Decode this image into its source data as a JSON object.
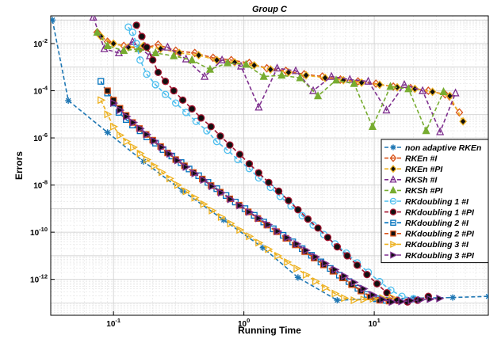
{
  "chart_data": {
    "type": "line",
    "title": "Group C",
    "xlabel": "Running Time",
    "ylabel": "Errors",
    "xscale": "log",
    "yscale": "log",
    "xlim": [
      0.033,
      75
    ],
    "ylim": [
      3e-14,
      0.15
    ],
    "grid": true,
    "legend_position": "right",
    "x_ticks": [
      {
        "value": 0.1,
        "base": "10",
        "exp": "-1"
      },
      {
        "value": 1,
        "base": "10",
        "exp": "0"
      },
      {
        "value": 10,
        "base": "10",
        "exp": "1"
      }
    ],
    "y_ticks": [
      {
        "value": 0.01,
        "base": "10",
        "exp": "-2"
      },
      {
        "value": 0.0001,
        "base": "10",
        "exp": "-4"
      },
      {
        "value": 1e-06,
        "base": "10",
        "exp": "-6"
      },
      {
        "value": 1e-08,
        "base": "10",
        "exp": "-8"
      },
      {
        "value": 1e-10,
        "base": "10",
        "exp": "-10"
      },
      {
        "value": 1e-12,
        "base": "10",
        "exp": "-12"
      }
    ],
    "series": [
      {
        "name": "non adaptive RKEn",
        "color": "#1f77b4",
        "marker": "asterisk",
        "fill": "#1f77b4",
        "x": [
          0.034,
          0.045,
          0.09,
          0.17,
          0.34,
          0.7,
          1.4,
          2.6,
          5.2,
          10,
          20,
          40,
          75
        ],
        "y": [
          0.1,
          3.8e-05,
          1.7e-06,
          1e-07,
          5.6e-09,
          3.3e-10,
          2.2e-11,
          1.2e-12,
          1.3e-13,
          1.5e-13,
          1.6e-13,
          1.7e-13,
          1.9e-13
        ]
      },
      {
        "name": "RKEn #I",
        "color": "#d95319",
        "marker": "diamond",
        "fill": "none",
        "x": [
          0.075,
          0.09,
          0.12,
          0.16,
          0.22,
          0.3,
          0.42,
          0.58,
          0.8,
          1.1,
          1.5,
          2.1,
          2.9,
          4,
          5.5,
          7.5,
          10.3,
          14,
          19,
          26,
          35,
          45
        ],
        "y": [
          0.03,
          0.012,
          0.008,
          0.006,
          0.009,
          0.005,
          0.004,
          0.0025,
          0.002,
          0.0015,
          0.0009,
          0.0007,
          0.0005,
          0.0004,
          0.0003,
          0.00025,
          0.0002,
          0.00015,
          0.00013,
          0.0001,
          7e-05,
          1.2e-05
        ]
      },
      {
        "name": "RKEn #PI",
        "color": "#edb120",
        "marker": "diamond",
        "fill": "#000000",
        "x": [
          0.08,
          0.1,
          0.13,
          0.17,
          0.23,
          0.32,
          0.45,
          0.62,
          0.85,
          1.2,
          1.6,
          2.2,
          3,
          4.2,
          5.8,
          8,
          11,
          15,
          20.5,
          28,
          38,
          48
        ],
        "y": [
          0.02,
          0.01,
          0.007,
          0.008,
          0.006,
          0.004,
          0.0032,
          0.002,
          0.0016,
          0.0012,
          0.0008,
          0.0006,
          0.00045,
          0.00035,
          0.00028,
          0.00022,
          0.00018,
          0.00014,
          0.00012,
          9e-05,
          6e-05,
          5e-06
        ]
      },
      {
        "name": "RKSh #I",
        "color": "#7e2f8e",
        "marker": "triangle-up",
        "fill": "none",
        "x": [
          0.07,
          0.085,
          0.11,
          0.14,
          0.19,
          0.26,
          0.36,
          0.5,
          0.68,
          0.95,
          1.3,
          1.8,
          2.5,
          3.4,
          4.7,
          6.5,
          9,
          12.4,
          17,
          23.5,
          32,
          42
        ],
        "y": [
          0.13,
          0.006,
          0.004,
          0.012,
          0.003,
          0.007,
          0.0022,
          0.0004,
          0.002,
          0.0011,
          2e-05,
          0.0009,
          0.0007,
          0.0001,
          0.0004,
          0.0003,
          0.00025,
          1.5e-05,
          0.00018,
          0.0001,
          1.8e-06,
          8e-05
        ]
      },
      {
        "name": "RKSh #PI",
        "color": "#77ac30",
        "marker": "triangle-up",
        "fill": "#77ac30",
        "x": [
          0.075,
          0.09,
          0.12,
          0.155,
          0.21,
          0.29,
          0.4,
          0.55,
          0.75,
          1.04,
          1.42,
          1.95,
          2.7,
          3.7,
          5.1,
          7,
          9.7,
          13.3,
          18.3,
          25,
          34
        ],
        "y": [
          0.03,
          0.008,
          0.005,
          0.006,
          0.004,
          0.003,
          0.002,
          0.0008,
          0.0015,
          0.0013,
          0.0004,
          0.00045,
          0.00035,
          6e-05,
          0.00028,
          0.0002,
          3e-06,
          0.00015,
          0.00012,
          2e-06,
          9e-05
        ]
      },
      {
        "name": "RKdoubling 1 #I",
        "color": "#4dbeee",
        "marker": "circle",
        "fill": "none",
        "x": [
          0.13,
          0.14,
          0.15,
          0.16,
          0.18,
          0.21,
          0.25,
          0.3,
          0.36,
          0.43,
          0.52,
          0.62,
          0.75,
          0.9,
          1.1,
          1.3,
          1.6,
          1.9,
          2.3,
          2.8,
          3.4,
          4.1,
          5,
          6.1,
          7.4,
          9,
          11,
          13.4,
          16.3,
          20
        ],
        "y": [
          0.05,
          0.03,
          0.01,
          0.002,
          0.0005,
          0.00018,
          7e-05,
          3e-05,
          1.2e-05,
          5e-06,
          2e-06,
          7e-07,
          3e-07,
          1.2e-07,
          5e-08,
          2e-08,
          8e-09,
          3.3e-09,
          1.3e-09,
          5e-10,
          2e-10,
          8e-11,
          3.2e-11,
          1.3e-11,
          5e-12,
          2e-12,
          8e-13,
          3.5e-13,
          1.9e-13,
          1.5e-13
        ]
      },
      {
        "name": "RKdoubling 1 #PI",
        "color": "#a2142f",
        "marker": "circle",
        "fill": "#000000",
        "x": [
          0.15,
          0.165,
          0.18,
          0.2,
          0.22,
          0.25,
          0.29,
          0.34,
          0.4,
          0.47,
          0.56,
          0.66,
          0.78,
          0.93,
          1.1,
          1.3,
          1.55,
          1.85,
          2.2,
          2.6,
          3.1,
          3.7,
          4.4,
          5.2,
          6.2,
          7.4,
          8.8,
          10.5,
          12.5,
          15,
          18,
          21.5,
          26
        ],
        "y": [
          0.06,
          0.02,
          0.007,
          0.002,
          0.0006,
          0.00025,
          0.0001,
          4e-05,
          1.7e-05,
          7e-06,
          3e-06,
          1.2e-06,
          5e-07,
          2e-07,
          8e-08,
          3.3e-08,
          1.3e-08,
          5.5e-09,
          2.2e-09,
          9e-10,
          3.6e-10,
          1.5e-10,
          6e-11,
          2.4e-11,
          1e-11,
          4e-12,
          1.6e-12,
          6.5e-13,
          2.7e-13,
          1.3e-13,
          1.1e-13,
          1.3e-13,
          1.9e-13
        ]
      },
      {
        "name": "RKdoubling 2 #I",
        "color": "#0072bd",
        "marker": "square",
        "fill": "none",
        "x": [
          0.08,
          0.09,
          0.1,
          0.11,
          0.125,
          0.14,
          0.16,
          0.18,
          0.21,
          0.24,
          0.28,
          0.33,
          0.38,
          0.45,
          0.53,
          0.62,
          0.73,
          0.86,
          1.02,
          1.2,
          1.42,
          1.68,
          2,
          2.37,
          2.8,
          3.3,
          3.9,
          4.6,
          5.4,
          6.4,
          7.5,
          8.8,
          10.4,
          12.3
        ],
        "y": [
          0.00025,
          8e-05,
          3e-05,
          1.2e-05,
          6e-06,
          3.5e-06,
          2e-06,
          1.1e-06,
          6e-07,
          3.2e-07,
          1.7e-07,
          9e-08,
          4.8e-08,
          2.5e-08,
          1.3e-08,
          7e-09,
          3.6e-09,
          1.9e-09,
          1e-09,
          5.2e-10,
          2.7e-10,
          1.4e-10,
          7.4e-11,
          3.9e-11,
          2e-11,
          1.05e-11,
          5.5e-12,
          2.9e-12,
          1.5e-12,
          8e-13,
          4.2e-13,
          2.3e-13,
          1.5e-13,
          1.3e-13
        ]
      },
      {
        "name": "RKdoubling 2 #PI",
        "color": "#d95319",
        "marker": "square",
        "fill": "#000000",
        "x": [
          0.09,
          0.1,
          0.112,
          0.125,
          0.14,
          0.158,
          0.178,
          0.2,
          0.23,
          0.26,
          0.3,
          0.35,
          0.41,
          0.48,
          0.56,
          0.66,
          0.78,
          0.92,
          1.08,
          1.28,
          1.5,
          1.78,
          2.1,
          2.48,
          2.93,
          3.46,
          4.08,
          4.82,
          5.7,
          6.7,
          7.9,
          9.3,
          11,
          13
        ],
        "y": [
          0.0001,
          4e-05,
          1.8e-05,
          9e-06,
          4.5e-06,
          2.5e-06,
          1.4e-06,
          8e-07,
          4.3e-07,
          2.3e-07,
          1.2e-07,
          6.5e-08,
          3.4e-08,
          1.8e-08,
          9.5e-09,
          5e-09,
          2.6e-09,
          1.4e-09,
          7.3e-10,
          3.8e-10,
          2e-10,
          1.05e-10,
          5.5e-11,
          2.9e-11,
          1.5e-11,
          8e-12,
          4.1e-12,
          2.2e-12,
          1.15e-12,
          6e-13,
          3.2e-13,
          1.8e-13,
          1.3e-13,
          1.2e-13
        ]
      },
      {
        "name": "RKdoubling 3 #I",
        "color": "#edb120",
        "marker": "triangle-right",
        "fill": "none",
        "x": [
          0.08,
          0.09,
          0.1,
          0.112,
          0.126,
          0.142,
          0.16,
          0.18,
          0.205,
          0.235,
          0.27,
          0.31,
          0.36,
          0.42,
          0.49,
          0.57,
          0.67,
          0.79,
          0.93,
          1.1,
          1.3,
          1.54,
          1.82,
          2.15,
          2.55,
          3,
          3.55,
          4.2,
          5,
          5.9,
          7,
          8.3,
          9.8,
          11.6,
          13.7
        ],
        "y": [
          4e-05,
          1e-05,
          3e-06,
          1.3e-06,
          7e-07,
          4e-07,
          2.2e-07,
          1.2e-07,
          6.5e-08,
          3.5e-08,
          1.9e-08,
          1e-08,
          5.4e-09,
          2.9e-09,
          1.55e-09,
          8.3e-10,
          4.4e-10,
          2.35e-10,
          1.25e-10,
          6.7e-11,
          3.6e-11,
          1.9e-11,
          1e-11,
          5.4e-12,
          2.9e-12,
          1.55e-12,
          8.3e-13,
          4.4e-13,
          2.5e-13,
          1.6e-13,
          1.3e-13,
          1.4e-13,
          1.5e-13,
          1.6e-13,
          1.7e-13
        ]
      },
      {
        "name": "RKdoubling 3 #PI",
        "color": "#7e2f8e",
        "marker": "triangle-right",
        "fill": "#000000",
        "x": [
          0.1,
          0.112,
          0.126,
          0.142,
          0.16,
          0.18,
          0.205,
          0.235,
          0.27,
          0.31,
          0.36,
          0.42,
          0.49,
          0.57,
          0.67,
          0.79,
          0.93,
          1.1,
          1.3,
          1.54,
          1.82,
          2.15,
          2.55,
          3,
          3.55,
          4.2,
          5,
          5.9,
          7,
          8.3,
          9.8,
          11.6,
          13.7,
          16.2,
          19.2,
          22.7,
          26.8,
          31.7
        ],
        "y": [
          3e-05,
          1.5e-05,
          8e-06,
          4.5e-06,
          2.5e-06,
          1.4e-06,
          7.5e-07,
          4e-07,
          2.1e-07,
          1.1e-07,
          5.8e-08,
          3.1e-08,
          1.65e-08,
          8.8e-09,
          4.7e-09,
          2.5e-09,
          1.35e-09,
          7.2e-10,
          3.9e-10,
          2.1e-10,
          1.1e-10,
          5.9e-11,
          3.2e-11,
          1.7e-11,
          9e-12,
          4.8e-12,
          2.6e-12,
          1.4e-12,
          7.5e-13,
          4e-13,
          2.2e-13,
          1.4e-13,
          1.1e-13,
          1.15e-13,
          1.25e-13,
          1.35e-13,
          1.45e-13,
          1.55e-13
        ]
      }
    ]
  }
}
